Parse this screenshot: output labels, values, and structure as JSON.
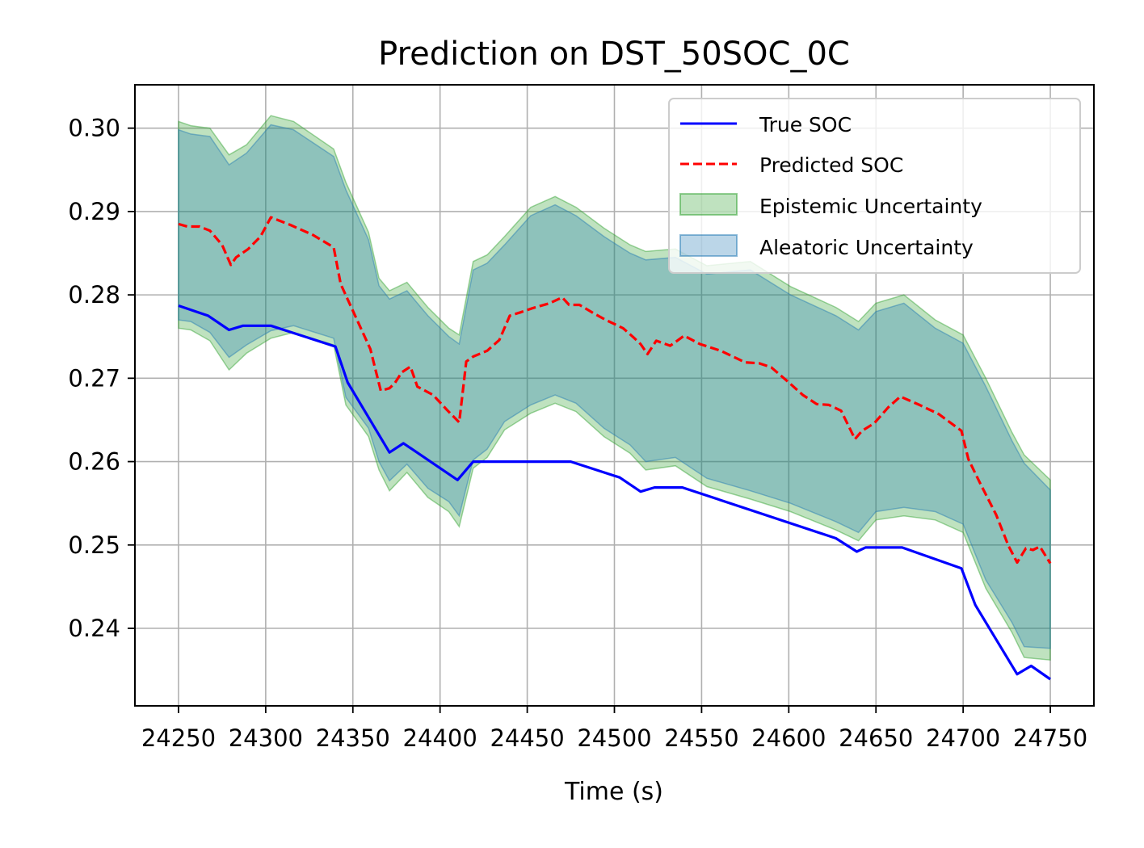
{
  "chart_data": {
    "type": "line",
    "title": "Prediction on DST_50SOC_0C",
    "xlabel": "Time (s)",
    "ylabel": "",
    "xlim": [
      24225,
      24775
    ],
    "ylim": [
      0.2307,
      0.3052
    ],
    "x_ticks": [
      24250,
      24300,
      24350,
      24400,
      24450,
      24500,
      24550,
      24600,
      24650,
      24700,
      24750
    ],
    "y_ticks": [
      0.24,
      0.25,
      0.26,
      0.27,
      0.28,
      0.29,
      0.3
    ],
    "y_tick_labels": [
      "0.24",
      "0.25",
      "0.26",
      "0.27",
      "0.28",
      "0.29",
      "0.30"
    ],
    "grid": true,
    "legend_position": "top-right",
    "legend": [
      "True SOC",
      "Predicted SOC",
      "Epistemic Uncertainty",
      "Aleatoric Uncertainty"
    ],
    "series": [
      {
        "name": "True SOC",
        "style": "solid",
        "color": "#0000ff",
        "x": [
          24250,
          24267,
          24279,
          24287,
          24303,
          24340,
          24347,
          24371,
          24379,
          24410,
          24419,
          24475,
          24503,
          24515,
          24523,
          24539,
          24627,
          24639,
          24644,
          24665,
          24699,
          24707,
          24731,
          24739,
          24750
        ],
        "y": [
          0.2787,
          0.2775,
          0.2758,
          0.2763,
          0.2763,
          0.2738,
          0.2695,
          0.2611,
          0.2622,
          0.2578,
          0.26,
          0.26,
          0.2581,
          0.2564,
          0.2569,
          0.2569,
          0.2508,
          0.2492,
          0.2497,
          0.2497,
          0.2472,
          0.2428,
          0.2345,
          0.2355,
          0.2339
        ]
      },
      {
        "name": "Predicted SOC",
        "style": "dashed",
        "color": "#ff0000",
        "x": [
          24250,
          24255,
          24262,
          24268,
          24275,
          24280,
          24283,
          24290,
          24297,
          24303,
          24314,
          24327,
          24339,
          24343,
          24348,
          24360,
          24366,
          24371,
          24374,
          24378,
          24383,
          24387,
          24396,
          24404,
          24411,
          24415,
          24419,
          24427,
          24434,
          24440,
          24446,
          24453,
          24463,
          24470,
          24474,
          24480,
          24488,
          24495,
          24505,
          24511,
          24515,
          24519,
          24524,
          24532,
          24540,
          24549,
          24561,
          24570,
          24575,
          24583,
          24590,
          24600,
          24608,
          24616,
          24623,
          24630,
          24638,
          24642,
          24649,
          24657,
          24664,
          24675,
          24686,
          24699,
          24703,
          24710,
          24719,
          24726,
          24731,
          24736,
          24740,
          24744,
          24750
        ],
        "y": [
          0.2885,
          0.2882,
          0.2882,
          0.2877,
          0.286,
          0.2836,
          0.2845,
          0.2855,
          0.287,
          0.2893,
          0.2884,
          0.2872,
          0.2857,
          0.2813,
          0.279,
          0.2735,
          0.2685,
          0.2688,
          0.2694,
          0.2707,
          0.2714,
          0.269,
          0.268,
          0.2662,
          0.2647,
          0.272,
          0.2726,
          0.2733,
          0.2746,
          0.2775,
          0.2779,
          0.2784,
          0.279,
          0.2797,
          0.2788,
          0.2788,
          0.2778,
          0.277,
          0.276,
          0.2749,
          0.2741,
          0.2729,
          0.2745,
          0.2739,
          0.2751,
          0.2741,
          0.2733,
          0.2724,
          0.2719,
          0.2718,
          0.2713,
          0.2695,
          0.268,
          0.2669,
          0.2668,
          0.2661,
          0.2627,
          0.2637,
          0.2646,
          0.2665,
          0.2678,
          0.2668,
          0.2657,
          0.2637,
          0.2603,
          0.2573,
          0.2536,
          0.2499,
          0.2479,
          0.2496,
          0.2494,
          0.2498,
          0.2478
        ]
      }
    ],
    "bands": [
      {
        "name": "Epistemic Uncertainty",
        "color": "#2ca02c",
        "x": [
          24250,
          24257,
          24268,
          24279,
          24289,
          24303,
          24316,
          24339,
          24346,
          24359,
          24365,
          24371,
          24381,
          24393,
          24405,
          24411,
          24419,
          24427,
          24437,
          24452,
          24466,
          24478,
          24494,
          24509,
          24518,
          24535,
          24553,
          24578,
          24601,
          24627,
          24640,
          24650,
          24666,
          24684,
          24700,
          24713,
          24728,
          24735,
          24750
        ],
        "lower": [
          0.276,
          0.2758,
          0.2745,
          0.271,
          0.273,
          0.2748,
          0.2755,
          0.274,
          0.2668,
          0.263,
          0.259,
          0.2565,
          0.2587,
          0.2557,
          0.254,
          0.2522,
          0.2592,
          0.2605,
          0.2638,
          0.2658,
          0.267,
          0.266,
          0.263,
          0.261,
          0.259,
          0.2595,
          0.257,
          0.2555,
          0.254,
          0.2518,
          0.2505,
          0.253,
          0.2535,
          0.253,
          0.2515,
          0.2448,
          0.2395,
          0.2365,
          0.2362
        ],
        "upper": [
          0.3008,
          0.3003,
          0.3,
          0.2968,
          0.298,
          0.3015,
          0.3008,
          0.2975,
          0.2935,
          0.2875,
          0.282,
          0.2805,
          0.2815,
          0.2785,
          0.276,
          0.2752,
          0.284,
          0.2848,
          0.287,
          0.2905,
          0.2918,
          0.2905,
          0.288,
          0.286,
          0.2852,
          0.2855,
          0.2835,
          0.284,
          0.281,
          0.2785,
          0.2768,
          0.279,
          0.28,
          0.277,
          0.2752,
          0.27,
          0.2635,
          0.2608,
          0.2578
        ]
      },
      {
        "name": "Aleatoric Uncertainty",
        "color": "#1f77b4",
        "x": [
          24250,
          24257,
          24268,
          24279,
          24289,
          24303,
          24316,
          24339,
          24346,
          24359,
          24365,
          24371,
          24381,
          24393,
          24405,
          24411,
          24419,
          24427,
          24437,
          24452,
          24466,
          24478,
          24494,
          24509,
          24518,
          24535,
          24553,
          24578,
          24601,
          24627,
          24640,
          24650,
          24666,
          24684,
          24700,
          24713,
          24728,
          24735,
          24750
        ],
        "lower": [
          0.277,
          0.2768,
          0.2755,
          0.2725,
          0.274,
          0.2757,
          0.2763,
          0.2748,
          0.2677,
          0.264,
          0.26,
          0.2577,
          0.2597,
          0.2568,
          0.2552,
          0.2535,
          0.2602,
          0.2615,
          0.2648,
          0.2668,
          0.268,
          0.267,
          0.264,
          0.262,
          0.26,
          0.2605,
          0.258,
          0.2565,
          0.255,
          0.2528,
          0.2515,
          0.254,
          0.2545,
          0.254,
          0.2525,
          0.2458,
          0.2407,
          0.2378,
          0.2376
        ],
        "upper": [
          0.2998,
          0.2993,
          0.299,
          0.2956,
          0.297,
          0.3004,
          0.2998,
          0.2966,
          0.2926,
          0.2866,
          0.2811,
          0.2795,
          0.2805,
          0.2775,
          0.275,
          0.2741,
          0.283,
          0.2838,
          0.286,
          0.2895,
          0.2908,
          0.2895,
          0.287,
          0.285,
          0.2842,
          0.2845,
          0.2825,
          0.283,
          0.28,
          0.2775,
          0.2758,
          0.278,
          0.279,
          0.276,
          0.2742,
          0.269,
          0.2625,
          0.2598,
          0.2566
        ]
      }
    ]
  }
}
